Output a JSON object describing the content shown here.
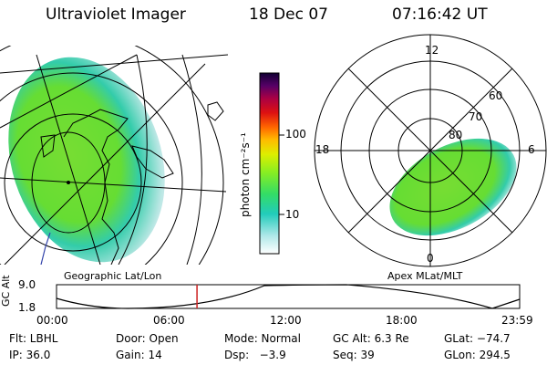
{
  "header": {
    "instrument": "Ultraviolet Imager",
    "date": "18 Dec 07",
    "time": "07:16:42 UT"
  },
  "colorbar": {
    "unit_label": "photon cm⁻²s⁻¹",
    "ticks": [
      "100",
      "10"
    ]
  },
  "left_panel": {
    "caption": "Geographic Lat/Lon"
  },
  "right_panel": {
    "caption": "Apex MLat/MLT",
    "mlt_labels": [
      "12",
      "18",
      "6",
      "0"
    ],
    "mlat_labels": [
      "60",
      "70",
      "80"
    ]
  },
  "altitude_plot": {
    "ylabel": "GC Alt",
    "y_ticks": [
      "9.0",
      "1.8"
    ],
    "x_ticks": [
      "00:00",
      "06:00",
      "12:00",
      "18:00",
      "23:59"
    ],
    "current_time_hours": 7.28
  },
  "status": {
    "flt": "Flt: LBHL",
    "door": "Door: Open",
    "mode": "Mode: Normal",
    "gc_alt": "GC Alt: 6.3 Re",
    "glat": "GLat: −74.7",
    "ip": "IP: 36.0",
    "gain": "Gain: 14",
    "dsp": "Dsp:   −3.9",
    "seq": "Seq: 39",
    "glon": "GLon: 294.5"
  },
  "colors": {
    "aurora_green": "#66dd33",
    "aurora_teal": "#33ccaa",
    "marker_red": "#cc2222",
    "coast_blue": "#3344aa"
  }
}
